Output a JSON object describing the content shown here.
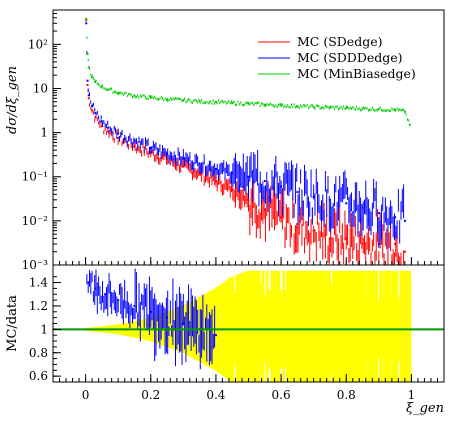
{
  "chart_data": [
    {
      "type": "scatter",
      "panel": "upper",
      "ylabel": "dσ/dξ_gen",
      "yscale": "log",
      "ylim": [
        0.001,
        600
      ],
      "xlim": [
        -0.1,
        1.1
      ],
      "yticks": [
        {
          "value": 0.001,
          "label": "10⁻³"
        },
        {
          "value": 0.01,
          "label": "10⁻²"
        },
        {
          "value": 0.1,
          "label": "10⁻¹"
        },
        {
          "value": 1,
          "label": "1"
        },
        {
          "value": 10,
          "label": "10"
        },
        {
          "value": 100,
          "label": "10²"
        }
      ],
      "legend_position": "top-right",
      "series": [
        {
          "name": "MC (SDedge)",
          "color": "#ff0000",
          "x": [
            0.002,
            0.006,
            0.01,
            0.02,
            0.03,
            0.05,
            0.07,
            0.1,
            0.15,
            0.2,
            0.25,
            0.3,
            0.35,
            0.4,
            0.45,
            0.5,
            0.55,
            0.6,
            0.65,
            0.7,
            0.75,
            0.8,
            0.85,
            0.9,
            0.95,
            0.98
          ],
          "y": [
            350,
            12,
            6,
            3.2,
            2.2,
            1.4,
            1.05,
            0.75,
            0.5,
            0.35,
            0.25,
            0.17,
            0.12,
            0.08,
            0.05,
            0.03,
            0.018,
            0.012,
            0.007,
            0.006,
            0.004,
            0.004,
            0.003,
            0.003,
            0.003,
            0.002
          ]
        },
        {
          "name": "MC (SDDDedge)",
          "color": "#0000ff",
          "x": [
            0.002,
            0.006,
            0.01,
            0.02,
            0.03,
            0.05,
            0.07,
            0.1,
            0.15,
            0.2,
            0.25,
            0.3,
            0.35,
            0.4,
            0.45,
            0.5,
            0.55,
            0.6,
            0.65,
            0.7,
            0.75,
            0.8,
            0.85,
            0.9,
            0.95,
            0.98
          ],
          "y": [
            300,
            15,
            7,
            4,
            2.8,
            1.8,
            1.3,
            0.95,
            0.65,
            0.45,
            0.33,
            0.26,
            0.2,
            0.15,
            0.12,
            0.1,
            0.08,
            0.06,
            0.045,
            0.035,
            0.03,
            0.025,
            0.02,
            0.015,
            0.012,
            0.01
          ]
        },
        {
          "name": "MC (MinBiasedge)",
          "color": "#00cc00",
          "x": [
            0.002,
            0.006,
            0.01,
            0.02,
            0.03,
            0.05,
            0.07,
            0.1,
            0.15,
            0.2,
            0.25,
            0.3,
            0.35,
            0.4,
            0.45,
            0.5,
            0.55,
            0.6,
            0.65,
            0.7,
            0.75,
            0.8,
            0.85,
            0.9,
            0.95,
            0.98,
            0.995
          ],
          "y": [
            380,
            60,
            30,
            18,
            14,
            11,
            9.5,
            8,
            6.8,
            6.2,
            5.7,
            5.4,
            5.1,
            4.9,
            4.7,
            4.5,
            4.3,
            4.1,
            4,
            3.8,
            3.7,
            3.6,
            3.5,
            3.4,
            3.3,
            3,
            1.5
          ]
        }
      ]
    },
    {
      "type": "scatter",
      "panel": "lower",
      "ylabel": "MC/data",
      "ylim": [
        0.55,
        1.55
      ],
      "xlim": [
        -0.1,
        1.1
      ],
      "yticks": [
        {
          "value": 0.6,
          "label": "0.6"
        },
        {
          "value": 0.8,
          "label": "0.8"
        },
        {
          "value": 1,
          "label": "1"
        },
        {
          "value": 1.2,
          "label": "1.2"
        },
        {
          "value": 1.4,
          "label": "1.4"
        }
      ],
      "reference_line": {
        "value": 1,
        "color": "#009900"
      },
      "data_uncertainty_band": {
        "color": "#ffff00",
        "x": [
          0,
          0.1,
          0.2,
          0.3,
          0.4,
          0.45,
          0.5,
          1.0
        ],
        "half_width": [
          0.01,
          0.04,
          0.1,
          0.2,
          0.35,
          0.45,
          0.5,
          0.5
        ]
      },
      "series": [
        {
          "name": "MC (SDDDedge)",
          "color": "#0000ff",
          "x": [
            0.01,
            0.03,
            0.06,
            0.1,
            0.15,
            0.2,
            0.25,
            0.3,
            0.35,
            0.4
          ],
          "y": [
            1.4,
            1.35,
            1.3,
            1.25,
            1.2,
            1.15,
            1.1,
            1.05,
            1.0,
            0.95
          ]
        }
      ]
    }
  ],
  "xaxis": {
    "label": "ξ_gen",
    "ticks": [
      {
        "value": 0,
        "label": "0"
      },
      {
        "value": 0.2,
        "label": "0.2"
      },
      {
        "value": 0.4,
        "label": "0.4"
      },
      {
        "value": 0.6,
        "label": "0.6"
      },
      {
        "value": 0.8,
        "label": "0.8"
      },
      {
        "value": 1,
        "label": "1"
      }
    ]
  }
}
